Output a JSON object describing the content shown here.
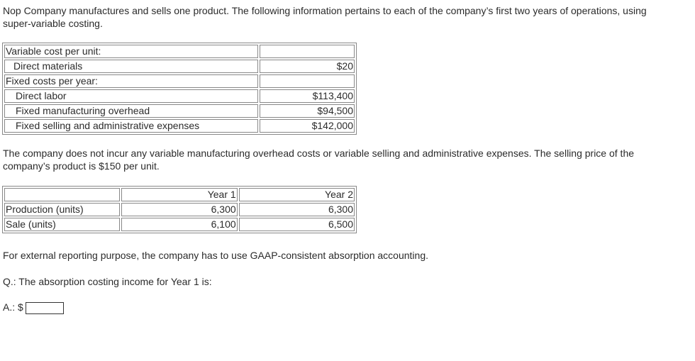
{
  "intro": "Nop Company manufactures and sells one product. The following information pertains to each of the company’s first two years of operations, using super-variable costing.",
  "cost_table": {
    "rows": [
      {
        "label": "Variable cost per unit:",
        "value": ""
      },
      {
        "label": "Direct materials",
        "value": "$20"
      },
      {
        "label": "Fixed costs per year:",
        "value": ""
      },
      {
        "label": "Direct labor",
        "value": "$113,400"
      },
      {
        "label": "Fixed manufacturing overhead",
        "value": "$94,500"
      },
      {
        "label": "Fixed selling and administrative expenses",
        "value": "$142,000"
      }
    ]
  },
  "middle_text": "The company does not incur any variable manufacturing overhead costs or variable selling and administrative expenses. The selling price of the company’s product is $150 per unit.",
  "units_table": {
    "headers": [
      "",
      "Year 1",
      "Year 2"
    ],
    "rows": [
      {
        "label": "Production (units)",
        "year1": "6,300",
        "year2": "6,300"
      },
      {
        "label": "Sale (units)",
        "year1": "6,100",
        "year2": "6,500"
      }
    ]
  },
  "gaap_text": "For external reporting purpose, the company has to use GAAP-consistent absorption accounting.",
  "question": "Q.: The absorption costing income for Year 1 is:",
  "answer_prefix": "A.: $",
  "answer_value": ""
}
